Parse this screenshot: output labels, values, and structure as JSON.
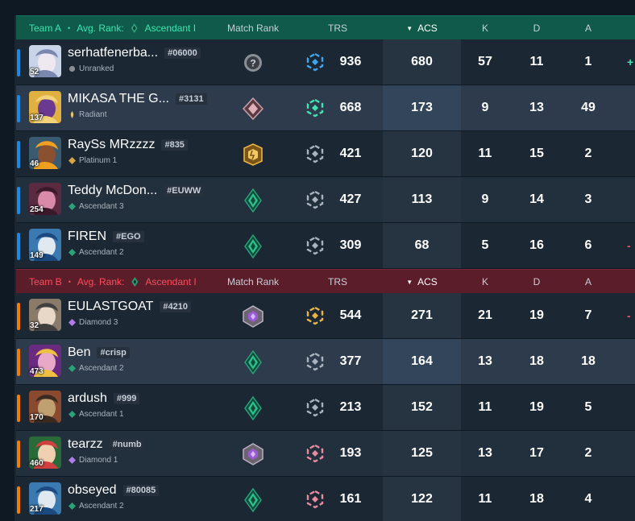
{
  "teams": [
    {
      "name": "Team A",
      "avg_rank_label": "Avg. Rank:",
      "avg_rank": "Ascendant I",
      "columns": {
        "match_rank": "Match Rank",
        "trs": "TRS",
        "acs": "ACS",
        "k": "K",
        "d": "D",
        "a": "A",
        "edge": "+"
      },
      "players": [
        {
          "name": "serhatfenerba...",
          "tag": "#06000",
          "rank": "Unranked",
          "level": "52",
          "trs": "936",
          "acs": "680",
          "k": "57",
          "d": "11",
          "a": "1",
          "edge": "+"
        },
        {
          "name": "MIKASA THE G...",
          "tag": "#3131",
          "rank": "Radiant",
          "level": "137",
          "trs": "668",
          "acs": "173",
          "k": "9",
          "d": "13",
          "a": "49",
          "edge": ""
        },
        {
          "name": "RaySs MRzzzz",
          "tag": "#835",
          "rank": "Platinum 1",
          "level": "46",
          "trs": "421",
          "acs": "120",
          "k": "11",
          "d": "15",
          "a": "2",
          "edge": ""
        },
        {
          "name": "Teddy McDon...",
          "tag": "#EUWW",
          "rank": "Ascendant 3",
          "level": "254",
          "trs": "427",
          "acs": "113",
          "k": "9",
          "d": "14",
          "a": "3",
          "edge": ""
        },
        {
          "name": "FIREN",
          "tag": "#EGO",
          "rank": "Ascendant 2",
          "level": "149",
          "trs": "309",
          "acs": "68",
          "k": "5",
          "d": "16",
          "a": "6",
          "edge": "-"
        }
      ]
    },
    {
      "name": "Team B",
      "avg_rank_label": "Avg. Rank:",
      "avg_rank": "Ascendant I",
      "columns": {
        "match_rank": "Match Rank",
        "trs": "TRS",
        "acs": "ACS",
        "k": "K",
        "d": "D",
        "a": "A",
        "edge": "+"
      },
      "players": [
        {
          "name": "EULASTGOAT",
          "tag": "#4210",
          "rank": "Diamond 3",
          "level": "32",
          "trs": "544",
          "acs": "271",
          "k": "21",
          "d": "19",
          "a": "7",
          "edge": "-"
        },
        {
          "name": "Ben",
          "tag": "#crisp",
          "rank": "Ascendant 2",
          "level": "473",
          "trs": "377",
          "acs": "164",
          "k": "13",
          "d": "18",
          "a": "18",
          "edge": ""
        },
        {
          "name": "ardush",
          "tag": "#999",
          "rank": "Ascendant 1",
          "level": "170",
          "trs": "213",
          "acs": "152",
          "k": "11",
          "d": "19",
          "a": "5",
          "edge": ""
        },
        {
          "name": "tearzz",
          "tag": "#numb",
          "rank": "Diamond 1",
          "level": "460",
          "trs": "193",
          "acs": "125",
          "k": "13",
          "d": "17",
          "a": "2",
          "edge": ""
        },
        {
          "name": "obseyed",
          "tag": "#80085",
          "rank": "Ascendant 2",
          "level": "217",
          "trs": "161",
          "acs": "122",
          "k": "11",
          "d": "18",
          "a": "4",
          "edge": ""
        }
      ]
    }
  ],
  "colors": {
    "team_a": "#3ee5b2",
    "team_b": "#ff4d5c",
    "ascendant": "#2aa27a",
    "diamond": "#b07ce8",
    "platinum": "#d9a441",
    "radiant": "#e8c36b"
  }
}
